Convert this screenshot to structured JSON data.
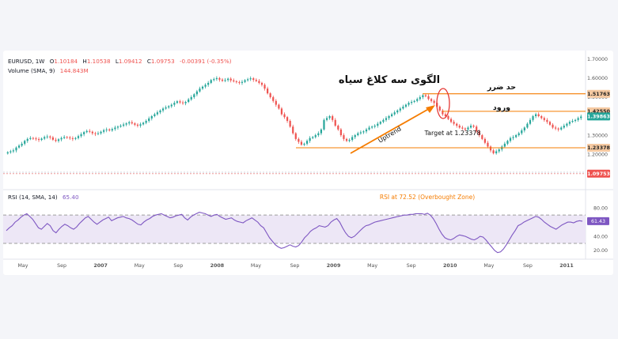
{
  "header": {
    "symbol": "EURUSD, 1W",
    "open_label": "O",
    "open": "1.10184",
    "high_label": "H",
    "high": "1.10538",
    "low_label": "L",
    "low": "1.09412",
    "close_label": "C",
    "close": "1.09753",
    "change": "-0.00391 (-0.35%)",
    "volume_label": "Volume (SMA, 9)",
    "volume_value": "144.843M"
  },
  "annotations": {
    "pattern_title": "الگوی سه کلاغ سیاه",
    "stop_loss": "حد ضرر",
    "entry": "ورود",
    "uptrend": "Uptrend",
    "target": "Target at 1.23378",
    "rsi_note": "RSI at 72.52 (Overbought Zone)"
  },
  "price_axis": {
    "ticks": [
      "1.70000",
      "1.60000",
      "1.50000",
      "1.40000",
      "1.30000",
      "1.20000",
      "1.10000"
    ],
    "badges": [
      {
        "text": "1.51763",
        "kind": "level"
      },
      {
        "text": "1.42550",
        "kind": "level"
      },
      {
        "text": "1.39863",
        "kind": "current"
      },
      {
        "text": "1.23378",
        "kind": "level"
      },
      {
        "text": "1.09753",
        "kind": "last"
      }
    ]
  },
  "rsi_panel": {
    "label": "RSI (14, SMA, 14)",
    "value": "65.40",
    "badge": "61.43",
    "ticks": [
      "80.00",
      "60.00",
      "40.00",
      "20.00"
    ]
  },
  "time_axis": {
    "labels": [
      "May",
      "Sep",
      "2007",
      "May",
      "Sep",
      "2008",
      "May",
      "Sep",
      "2009",
      "May",
      "Sep",
      "2010",
      "May",
      "Sep",
      "2011"
    ]
  },
  "colors": {
    "up": "#26a69a",
    "down": "#ef5350",
    "level": "#f57c00",
    "rsi": "#7e57c2",
    "rsi_band": "#ede7f6",
    "badge_level": "#f5c9a1",
    "badge_current": "#26a69a",
    "badge_last": "#ef5350"
  },
  "chart_data": {
    "type": "candlestick",
    "interval": "1W",
    "x_start": "2006-03",
    "x_end": "2011-02",
    "ylim": [
      1.08,
      1.72
    ],
    "rsi_ylim": [
      10,
      88
    ],
    "levels": {
      "stop_loss": 1.51763,
      "entry": 1.4255,
      "target": 1.23378
    },
    "rsi_overbought": 70,
    "rsi_oversold": 30,
    "closes": [
      1.21,
      1.215,
      1.22,
      1.235,
      1.245,
      1.255,
      1.27,
      1.28,
      1.285,
      1.283,
      1.279,
      1.275,
      1.282,
      1.29,
      1.293,
      1.288,
      1.276,
      1.27,
      1.278,
      1.285,
      1.29,
      1.288,
      1.284,
      1.28,
      1.285,
      1.295,
      1.305,
      1.316,
      1.322,
      1.318,
      1.31,
      1.306,
      1.31,
      1.318,
      1.326,
      1.33,
      1.325,
      1.332,
      1.34,
      1.345,
      1.35,
      1.356,
      1.362,
      1.368,
      1.362,
      1.355,
      1.35,
      1.357,
      1.365,
      1.375,
      1.388,
      1.4,
      1.41,
      1.42,
      1.43,
      1.44,
      1.446,
      1.452,
      1.46,
      1.47,
      1.478,
      1.472,
      1.468,
      1.475,
      1.488,
      1.5,
      1.515,
      1.53,
      1.545,
      1.555,
      1.565,
      1.575,
      1.59,
      1.595,
      1.6,
      1.592,
      1.586,
      1.59,
      1.597,
      1.588,
      1.583,
      1.579,
      1.575,
      1.58,
      1.589,
      1.594,
      1.599,
      1.591,
      1.585,
      1.575,
      1.565,
      1.545,
      1.52,
      1.5,
      1.48,
      1.46,
      1.44,
      1.41,
      1.395,
      1.375,
      1.345,
      1.31,
      1.28,
      1.265,
      1.25,
      1.255,
      1.27,
      1.285,
      1.29,
      1.3,
      1.31,
      1.33,
      1.38,
      1.39,
      1.4,
      1.38,
      1.35,
      1.33,
      1.3,
      1.28,
      1.27,
      1.275,
      1.29,
      1.3,
      1.31,
      1.315,
      1.32,
      1.33,
      1.34,
      1.345,
      1.35,
      1.36,
      1.37,
      1.38,
      1.39,
      1.4,
      1.41,
      1.42,
      1.43,
      1.44,
      1.45,
      1.46,
      1.47,
      1.475,
      1.48,
      1.49,
      1.5,
      1.51,
      1.505,
      1.49,
      1.48,
      1.47,
      1.45,
      1.43,
      1.41,
      1.4,
      1.385,
      1.37,
      1.36,
      1.35,
      1.34,
      1.335,
      1.33,
      1.34,
      1.35,
      1.345,
      1.32,
      1.3,
      1.28,
      1.26,
      1.24,
      1.22,
      1.205,
      1.215,
      1.225,
      1.24,
      1.255,
      1.27,
      1.285,
      1.29,
      1.3,
      1.31,
      1.325,
      1.34,
      1.36,
      1.38,
      1.4,
      1.41,
      1.4,
      1.39,
      1.38,
      1.37,
      1.355,
      1.34,
      1.335,
      1.33,
      1.34,
      1.35,
      1.36,
      1.37,
      1.375,
      1.38,
      1.39,
      1.398
    ],
    "rsi": [
      48,
      52,
      55,
      60,
      63,
      67,
      70,
      72,
      68,
      64,
      58,
      52,
      50,
      54,
      58,
      55,
      48,
      45,
      50,
      54,
      57,
      55,
      52,
      50,
      53,
      58,
      62,
      66,
      68,
      64,
      60,
      57,
      60,
      63,
      65,
      67,
      62,
      64,
      66,
      67,
      68,
      66,
      65,
      63,
      60,
      57,
      56,
      60,
      63,
      65,
      68,
      70,
      71,
      72,
      70,
      68,
      66,
      67,
      69,
      70,
      71,
      66,
      63,
      67,
      70,
      72,
      74,
      73,
      72,
      70,
      68,
      70,
      71,
      68,
      66,
      64,
      65,
      66,
      63,
      61,
      60,
      59,
      62,
      64,
      66,
      63,
      60,
      55,
      52,
      45,
      38,
      33,
      28,
      25,
      23,
      24,
      26,
      28,
      26,
      25,
      27,
      32,
      38,
      42,
      47,
      50,
      52,
      55,
      54,
      53,
      55,
      60,
      63,
      65,
      60,
      52,
      45,
      40,
      38,
      40,
      44,
      48,
      52,
      55,
      56,
      58,
      60,
      61,
      62,
      63,
      64,
      65,
      66,
      67,
      68,
      69,
      70,
      70,
      71,
      71,
      72,
      72,
      72,
      71,
      72.5,
      70,
      65,
      58,
      50,
      43,
      38,
      36,
      35,
      37,
      40,
      42,
      41,
      40,
      38,
      36,
      35,
      37,
      40,
      39,
      35,
      30,
      25,
      20,
      17,
      18,
      22,
      28,
      35,
      42,
      48,
      55,
      57,
      60,
      62,
      64,
      66,
      68,
      67,
      64,
      60,
      57,
      54,
      52,
      50,
      53,
      56,
      58,
      60,
      60,
      59,
      61,
      62,
      61.4
    ]
  }
}
